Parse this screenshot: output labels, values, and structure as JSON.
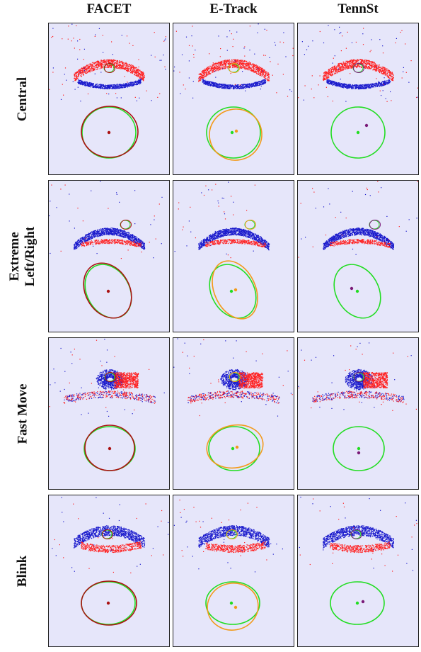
{
  "columns": [
    "FACET",
    "E-Track",
    "TennSt"
  ],
  "rows": [
    {
      "label": [
        "Central"
      ],
      "eye": "central"
    },
    {
      "label": [
        "Extreme",
        "Left/Right"
      ],
      "eye": "side"
    },
    {
      "label": [
        "Fast Move"
      ],
      "eye": "fast"
    },
    {
      "label": [
        "Blink"
      ],
      "eye": "blink"
    }
  ],
  "colors": {
    "background": "#e6e6fa",
    "ground_truth": "#22dd22",
    "facet": "#aa1111",
    "etrack": "#f29a1a",
    "tennst": "#7a1a78",
    "event_positive": "#ff2020",
    "event_negative": "#1a1acc"
  },
  "legend_semantics": {
    "green": "ground truth ellipse",
    "colored": "method prediction"
  }
}
